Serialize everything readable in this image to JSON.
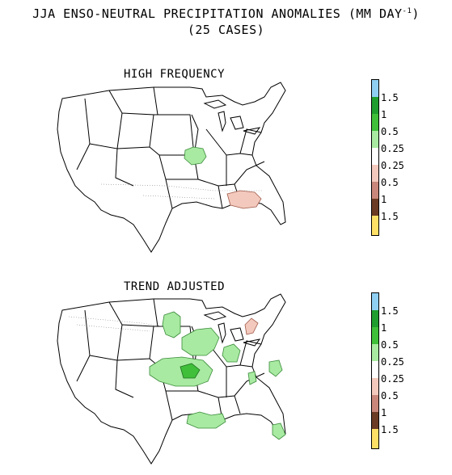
{
  "title": {
    "line1": "JJA ENSO-NEUTRAL PRECIPITATION ANOMALIES (MM DAY",
    "superscript": "-1",
    "line1_end": ")",
    "line2": "(25 CASES)"
  },
  "panels": [
    {
      "id": "high",
      "title": "HIGH FREQUENCY"
    },
    {
      "id": "trend",
      "title": "TREND ADJUSTED"
    }
  ],
  "legend": {
    "labels": [
      "1.5",
      "1",
      "0.5",
      "0.25",
      "0.25",
      "0.5",
      "1",
      "1.5"
    ],
    "colors": [
      "#8fd0f2",
      "#1f9e2f",
      "#3fbf3a",
      "#a8eaa1",
      "#ffffff",
      "#f3c9bd",
      "#c8877a",
      "#6b3b24",
      "#ffe066"
    ]
  }
}
